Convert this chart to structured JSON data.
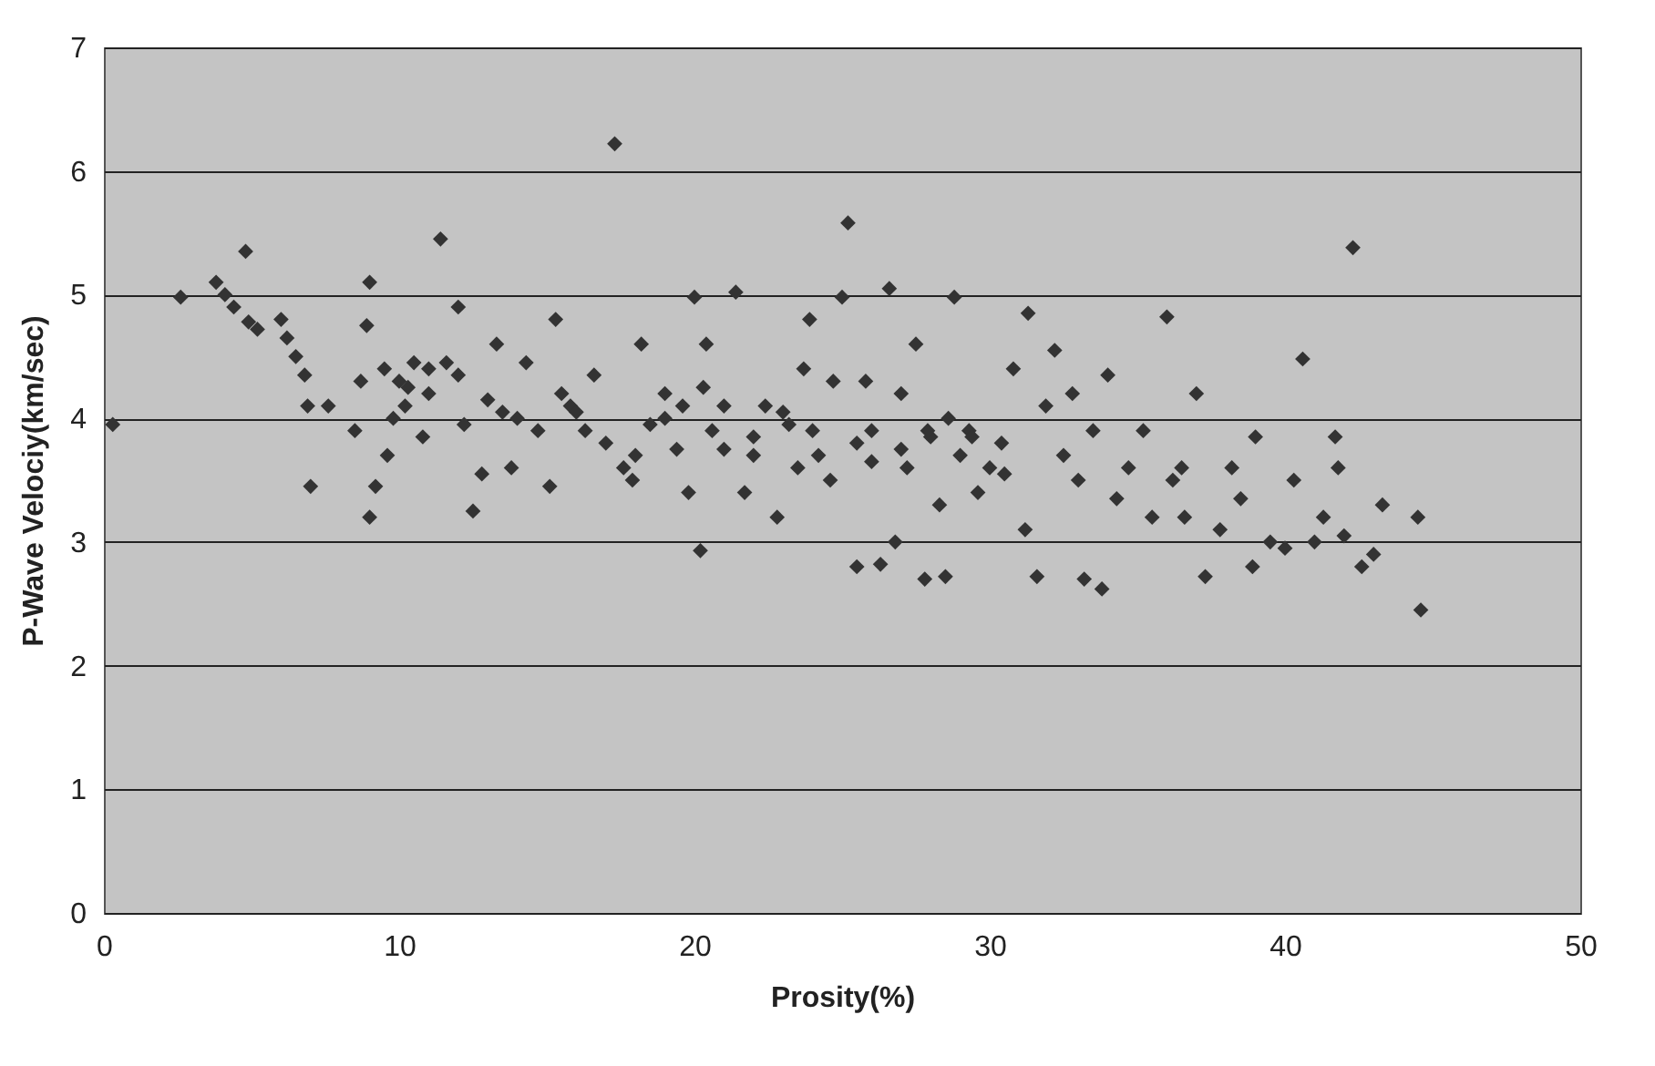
{
  "chart_data": {
    "type": "scatter",
    "xlabel": "Prosity(%)",
    "ylabel": "P-Wave Velociy(km/sec)",
    "xlim": [
      0,
      50
    ],
    "xticks": [
      0,
      10,
      20,
      30,
      40,
      50
    ],
    "ylim": [
      0,
      7
    ],
    "yticks": [
      0,
      1,
      2,
      3,
      4,
      5,
      6,
      7
    ],
    "grid": "y",
    "marker": "diamond",
    "series": [
      {
        "color": "#333333",
        "x": [
          0.3,
          2.6,
          3.8,
          4.1,
          4.4,
          4.8,
          4.9,
          5.2,
          6,
          6.2,
          6.5,
          6.8,
          6.9,
          7,
          7.6,
          8.5,
          8.7,
          8.9,
          9,
          9,
          9.2,
          9.5,
          9.6,
          10,
          10.2,
          10.5,
          10.8,
          11,
          11.4,
          11.6,
          12,
          12.2,
          12.5,
          12.8,
          13.3,
          13.5,
          13.8,
          14.3,
          14.7,
          15.1,
          15.3,
          15.5,
          15.8,
          16.3,
          16.6,
          17,
          17.3,
          17.6,
          17.9,
          18.2,
          18.5,
          19,
          19.4,
          19.8,
          20,
          20.2,
          20.4,
          20.6,
          21,
          21.4,
          21.7,
          22,
          22.4,
          22.8,
          23.2,
          23.7,
          23.9,
          24.2,
          24.6,
          25,
          25.2,
          25.5,
          25.8,
          26,
          26.3,
          26.6,
          26.8,
          27,
          27.2,
          27.5,
          27.8,
          28,
          28.3,
          28.5,
          28.8,
          29,
          29.3,
          29.6,
          30,
          30.4,
          30.8,
          31.2,
          31.3,
          31.6,
          31.9,
          32.2,
          32.5,
          33,
          33.2,
          33.5,
          33.8,
          34,
          34.3,
          34.7,
          35.2,
          35.5,
          36,
          36.2,
          36.6,
          37,
          37.3,
          37.8,
          38.2,
          38.5,
          38.9,
          39.5,
          40,
          40.3,
          40.6,
          41,
          41.3,
          41.7,
          42,
          42.3,
          42.6,
          43,
          43.3,
          44.5,
          44.6,
          41.8,
          39,
          32.8,
          30.5,
          28.6,
          27,
          26,
          24,
          23,
          22,
          21,
          19,
          18,
          16,
          14,
          13,
          12,
          11,
          10.3,
          9.8,
          27.9,
          29.4,
          25.5,
          24.7,
          20.3,
          19.6,
          23.5,
          36.5
        ],
        "values": [
          3.95,
          4.98,
          5.1,
          5.0,
          4.9,
          5.35,
          4.78,
          4.72,
          4.8,
          4.65,
          4.5,
          4.35,
          4.1,
          3.45,
          4.1,
          3.9,
          4.3,
          4.75,
          5.1,
          3.2,
          3.45,
          4.4,
          3.7,
          4.3,
          4.1,
          4.45,
          3.85,
          4.2,
          5.45,
          4.45,
          4.9,
          3.95,
          3.25,
          3.55,
          4.6,
          4.05,
          3.6,
          4.45,
          3.9,
          3.45,
          4.8,
          4.2,
          4.1,
          3.9,
          4.35,
          3.8,
          6.22,
          3.6,
          3.5,
          4.6,
          3.95,
          4.2,
          3.75,
          3.4,
          4.98,
          2.93,
          4.6,
          3.9,
          4.1,
          5.02,
          3.4,
          3.7,
          4.1,
          3.2,
          3.95,
          4.4,
          4.8,
          3.7,
          3.5,
          4.98,
          5.58,
          2.8,
          4.3,
          3.9,
          2.82,
          5.05,
          3.0,
          4.2,
          3.6,
          4.6,
          2.7,
          3.85,
          3.3,
          2.72,
          4.98,
          3.7,
          3.9,
          3.4,
          3.6,
          3.8,
          4.4,
          3.1,
          4.85,
          2.72,
          4.1,
          4.55,
          3.7,
          3.5,
          2.7,
          3.9,
          2.62,
          4.35,
          3.35,
          3.6,
          3.9,
          3.2,
          4.82,
          3.5,
          3.2,
          4.2,
          2.72,
          3.1,
          3.6,
          3.35,
          2.8,
          3.0,
          2.95,
          3.5,
          4.48,
          3.0,
          3.2,
          3.85,
          3.05,
          5.38,
          2.8,
          2.9,
          3.3,
          3.2,
          2.45,
          3.6,
          3.85,
          4.2,
          3.55,
          4.0,
          3.75,
          3.65,
          3.9,
          4.05,
          3.85,
          3.75,
          4.0,
          3.7,
          4.05,
          4.0,
          4.15,
          4.35,
          4.4,
          4.25,
          4.0,
          3.9,
          3.85,
          3.8,
          4.3,
          4.25,
          4.1,
          3.6,
          3.6
        ]
      }
    ]
  }
}
